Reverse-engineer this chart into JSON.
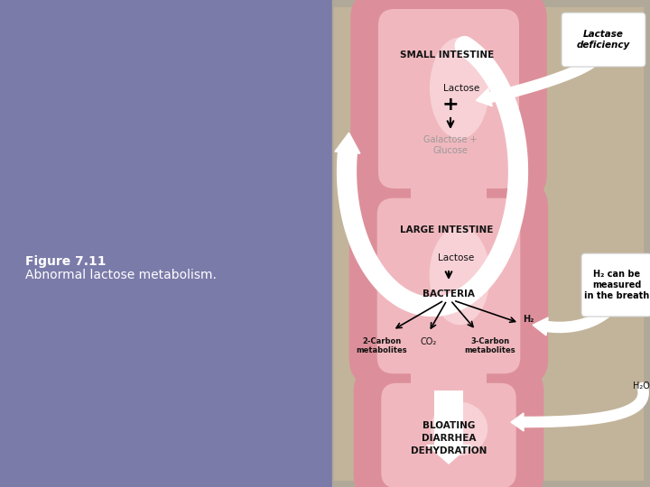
{
  "bg_left_color": "#7b7baa",
  "bg_right_color": "#b0a898",
  "diagram_bg": "#c2b49a",
  "intestine_outer_color": "#dc8f9a",
  "intestine_inner_color": "#f0b8be",
  "intestine_highlight": "#fce0e4",
  "figure_label": "Figure 7.11",
  "figure_caption": "Abnormal lactose metabolism.",
  "label_color": "#ffffff",
  "small_intestine_label": "SMALL INTESTINE",
  "large_intestine_label": "LARGE INTESTINE",
  "bacteria_label": "BACTERIA",
  "lactose_label1": "Lactose",
  "lactose_label2": "Lactose",
  "galactose_label": "Galactose +\nGlucose",
  "carbon2_label": "2-Carbon\nmetabolites",
  "co2_label": "CO₂",
  "carbon3_label": "3-Carbon\nmetabolites",
  "h2_label": "H₂",
  "h2o_label": "H₂O",
  "bloating_label": "BLOATING\nDIARRHEA\nDEHYDRATION",
  "lactase_box_text": "Lactase\ndeficiency",
  "h2_breath_text": "H₂ can be\nmeasured\nin the breath",
  "gray_label_color": "#999999",
  "dark_label_color": "#111111",
  "fig_width": 7.2,
  "fig_height": 5.4,
  "fig_dpi": 100
}
